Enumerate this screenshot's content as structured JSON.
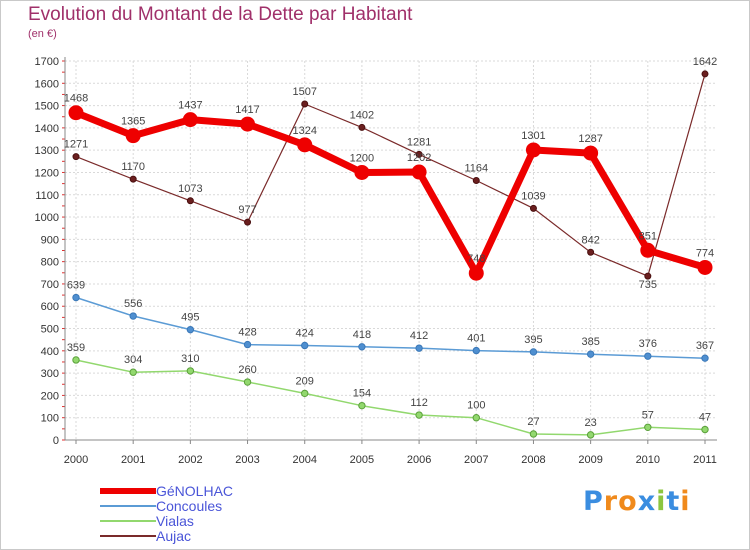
{
  "header": {
    "title": "Evolution du Montant de la Dette par Habitant",
    "subtitle": "(en €)"
  },
  "logo": {
    "text": "Proxiti",
    "letters": [
      "P",
      "r",
      "o",
      "x",
      "i",
      "t",
      "i"
    ],
    "colors": [
      "#3a8de0",
      "#f08a1c",
      "#f08a1c",
      "#3a8de0",
      "#8cc63f",
      "#3a8de0",
      "#f08a1c"
    ]
  },
  "chart_data": {
    "type": "line",
    "title": "Evolution du Montant de la Dette par Habitant",
    "subtitle": "(en €)",
    "xlabel": "",
    "ylabel": "",
    "categories": [
      "2000",
      "2001",
      "2002",
      "2003",
      "2004",
      "2005",
      "2006",
      "2007",
      "2008",
      "2009",
      "2010",
      "2011"
    ],
    "ylim": [
      0,
      1700
    ],
    "yticks": [
      0,
      100,
      200,
      300,
      400,
      500,
      600,
      700,
      800,
      900,
      1000,
      1100,
      1200,
      1300,
      1400,
      1500,
      1600,
      1700
    ],
    "grid": true,
    "legend_position": "bottom-left",
    "series": [
      {
        "name": "Aujac",
        "color": "#7a2a2a",
        "values": [
          1271,
          1170,
          1073,
          977,
          1507,
          1402,
          1281,
          1164,
          1039,
          842,
          735,
          1642
        ],
        "labels": [
          "1271",
          "1170",
          "1073",
          "977",
          "1507",
          "1402",
          "1281",
          "1164",
          "1039",
          "842",
          "735",
          "1642"
        ]
      },
      {
        "name": "Vialas",
        "color": "#92d86e",
        "values": [
          359,
          304,
          310,
          260,
          209,
          154,
          112,
          100,
          27,
          23,
          57,
          47
        ],
        "labels": [
          "359",
          "304",
          "310",
          "260",
          "209",
          "154",
          "112",
          "100",
          "27",
          "23",
          "57",
          "47"
        ]
      },
      {
        "name": "Concoules",
        "color": "#5b9bd5",
        "values": [
          639,
          556,
          495,
          428,
          424,
          418,
          412,
          401,
          395,
          385,
          376,
          367
        ],
        "labels": [
          "639",
          "556",
          "495",
          "428",
          "424",
          "418",
          "412",
          "401",
          "395",
          "385",
          "376",
          "367"
        ]
      },
      {
        "name": "GéNOLHAC",
        "color": "#ee0000",
        "values": [
          1468,
          1365,
          1437,
          1417,
          1324,
          1200,
          1202,
          748,
          1301,
          1287,
          851,
          774
        ],
        "labels": [
          "1468",
          "1365",
          "1437",
          "1417",
          "1324",
          "1200",
          "1202",
          "748",
          "1301",
          "1287",
          "851",
          "774"
        ]
      }
    ]
  },
  "legend": {
    "items": [
      {
        "label": "GéNOLHAC",
        "color": "#ee0000"
      },
      {
        "label": "Concoules",
        "color": "#5b9bd5"
      },
      {
        "label": "Vialas",
        "color": "#92d86e"
      },
      {
        "label": "Aujac",
        "color": "#7a2a2a"
      }
    ]
  }
}
